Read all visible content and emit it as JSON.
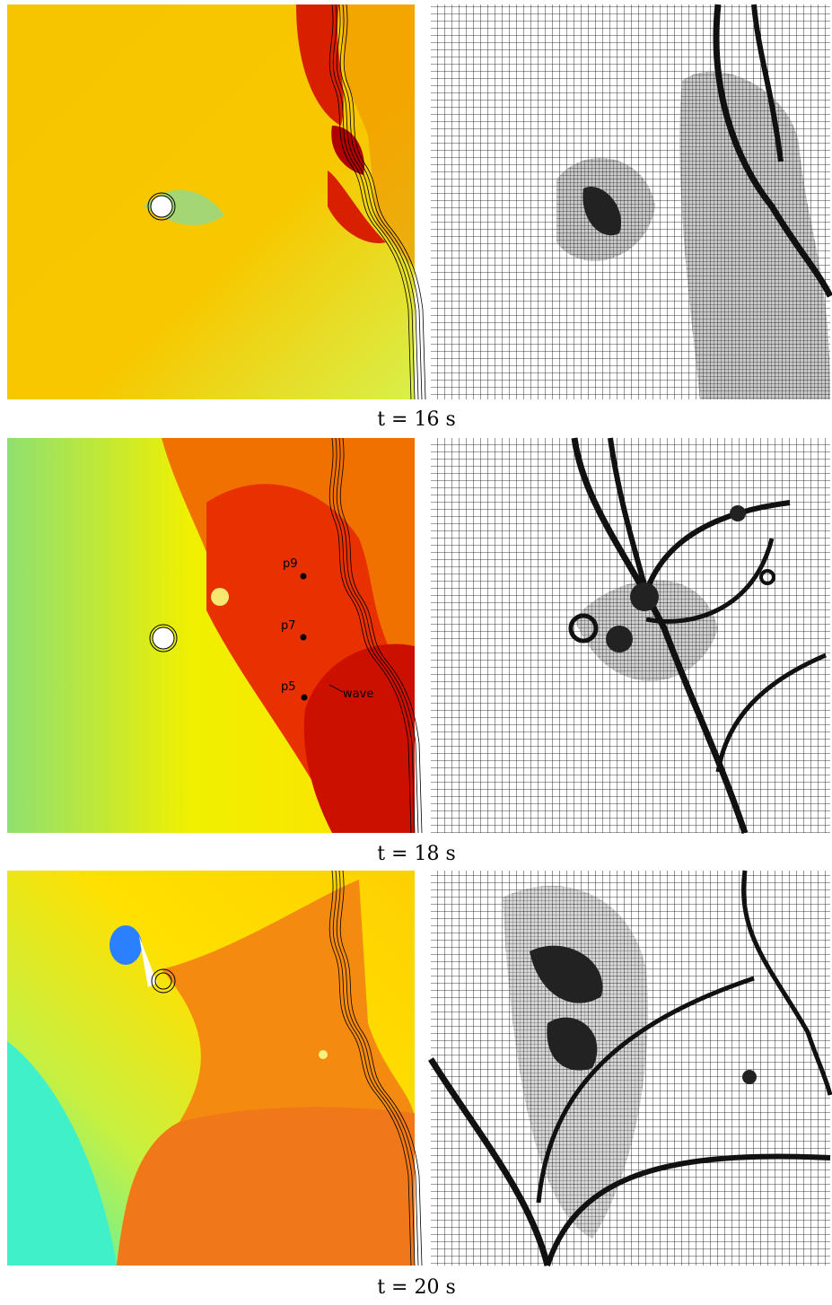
{
  "panels": [
    {
      "caption": "t = 16 s"
    },
    {
      "caption": "t = 18 s",
      "probes": [
        "p9",
        "p7",
        "p5"
      ],
      "annotation": "wave"
    },
    {
      "caption": "t = 20 s"
    }
  ]
}
